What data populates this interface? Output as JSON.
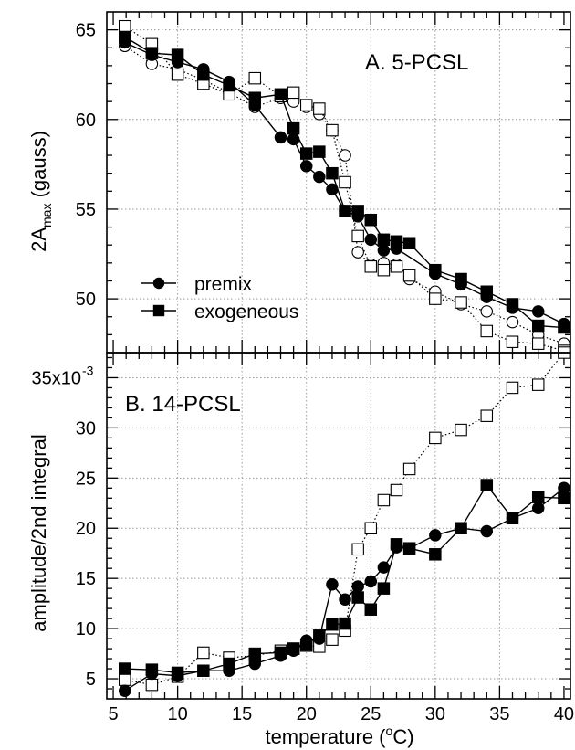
{
  "figure": {
    "xlabel_main": "temperature (",
    "xlabel_unit_sup": "o",
    "xlabel_unit_tail": "C)",
    "colors": {
      "ink": "#000000",
      "grid": "#9a9a9a",
      "open_fill": "#ffffff"
    }
  },
  "chart_data": [
    {
      "id": "A",
      "type": "line",
      "title": "A. 5-PCSL",
      "ylabel_main": "2A",
      "ylabel_sub": "max",
      "ylabel_tail": " (gauss)",
      "xlim": [
        4.5,
        40.5
      ],
      "ylim": [
        47.0,
        66.0
      ],
      "yticks": [
        50,
        55,
        60,
        65
      ],
      "xticks": [
        5,
        10,
        15,
        20,
        25,
        30,
        35,
        40
      ],
      "grid": true,
      "legend": {
        "position": "lower-left",
        "entries": [
          "premix",
          "exogeneous"
        ]
      },
      "series": [
        {
          "name": "premix",
          "marker": "circle",
          "filled": true,
          "line": "solid",
          "x": [
            5.9,
            8.0,
            10.0,
            12.0,
            14.0,
            16.0,
            18.0,
            19.0,
            20.0,
            21.0,
            22.0,
            23.0,
            24.0,
            25.0,
            26.0,
            27.0,
            30.0,
            32.0,
            34.0,
            36.0,
            38.0,
            40.0
          ],
          "y": [
            64.3,
            63.6,
            63.2,
            62.8,
            62.1,
            60.8,
            59.0,
            58.9,
            57.4,
            56.8,
            56.1,
            54.9,
            54.6,
            53.3,
            52.7,
            52.8,
            51.4,
            50.8,
            50.1,
            49.5,
            49.3,
            48.6
          ]
        },
        {
          "name": "exogeneous",
          "marker": "square",
          "filled": true,
          "line": "solid",
          "x": [
            5.9,
            8.0,
            10.0,
            12.0,
            14.0,
            16.0,
            18.0,
            19.0,
            20.0,
            21.0,
            22.0,
            23.0,
            24.0,
            25.0,
            26.0,
            27.0,
            28.0,
            30.0,
            32.0,
            34.0,
            36.0,
            38.0,
            40.0
          ],
          "y": [
            64.6,
            63.7,
            63.6,
            62.5,
            61.9,
            61.2,
            61.4,
            59.5,
            58.1,
            58.2,
            57.0,
            54.9,
            54.9,
            54.4,
            53.3,
            53.2,
            53.1,
            51.6,
            51.1,
            50.4,
            49.7,
            48.5,
            48.4
          ]
        },
        {
          "marker": "circle",
          "filled": false,
          "line": "dotted",
          "x": [
            5.9,
            8.0,
            10.0,
            12.0,
            14.0,
            16.0,
            18.0,
            19.0,
            20.0,
            21.0,
            22.0,
            23.0,
            24.0,
            25.0,
            26.0,
            27.0,
            28.0,
            30.0,
            32.0,
            34.0,
            36.0,
            38.0,
            40.0
          ],
          "y": [
            64.1,
            63.1,
            62.8,
            62.2,
            61.5,
            60.7,
            61.2,
            61.0,
            60.7,
            60.3,
            59.4,
            58.0,
            52.6,
            51.9,
            52.0,
            51.9,
            51.1,
            50.4,
            49.7,
            49.3,
            48.7,
            48.0,
            47.5
          ]
        },
        {
          "marker": "square",
          "filled": false,
          "line": "dotted",
          "x": [
            5.9,
            8.0,
            10.0,
            12.0,
            14.0,
            16.0,
            18.0,
            19.0,
            20.0,
            21.0,
            22.0,
            23.0,
            24.0,
            25.0,
            26.0,
            27.0,
            28.0,
            30.0,
            32.0,
            34.0,
            36.0,
            38.0,
            40.0
          ],
          "y": [
            65.2,
            64.2,
            62.5,
            62.0,
            61.4,
            62.3,
            61.3,
            61.5,
            60.8,
            60.6,
            59.4,
            56.5,
            53.5,
            51.8,
            51.6,
            51.8,
            51.3,
            50.0,
            49.8,
            48.2,
            47.6,
            47.5,
            47.1
          ]
        }
      ]
    },
    {
      "id": "B",
      "type": "line",
      "title": "B. 14-PCSL",
      "ylabel": "amplitude/2nd integral",
      "ylim": [
        3.0,
        37.5
      ],
      "yticks": [
        5,
        10,
        15,
        20,
        25,
        30,
        35
      ],
      "ytick_labels": [
        "5",
        "10",
        "15",
        "20",
        "25",
        "30",
        "35x10"
      ],
      "ytick_top_exponent": "-3",
      "xlim": [
        4.5,
        40.5
      ],
      "xticks": [
        5,
        10,
        15,
        20,
        25,
        30,
        35,
        40
      ],
      "grid": true,
      "series": [
        {
          "marker": "circle",
          "filled": true,
          "line": "solid",
          "x": [
            5.9,
            8.0,
            10.0,
            12.0,
            14.0,
            16.0,
            18.0,
            19.0,
            20.0,
            21.0,
            22.0,
            23.0,
            24.0,
            25.0,
            26.0,
            27.0,
            28.0,
            30.0,
            32.0,
            34.0,
            36.0,
            38.0,
            40.0
          ],
          "y": [
            3.8,
            5.5,
            5.3,
            5.8,
            5.8,
            6.5,
            7.3,
            7.8,
            8.8,
            9.0,
            14.4,
            12.9,
            14.2,
            14.7,
            16.1,
            18.1,
            18.0,
            19.3,
            20.0,
            19.7,
            21.0,
            22.0,
            24.0
          ]
        },
        {
          "marker": "square",
          "filled": true,
          "line": "solid",
          "x": [
            5.9,
            8.0,
            10.0,
            12.0,
            14.0,
            16.0,
            18.0,
            19.0,
            20.0,
            21.0,
            22.0,
            23.0,
            24.0,
            25.0,
            26.0,
            27.0,
            28.0,
            30.0,
            32.0,
            34.0,
            36.0,
            38.0,
            40.0
          ],
          "y": [
            6.0,
            5.9,
            5.6,
            5.8,
            6.5,
            7.5,
            7.6,
            8.0,
            8.4,
            9.3,
            10.4,
            10.5,
            13.1,
            11.9,
            14.0,
            18.4,
            18.0,
            17.4,
            20.0,
            24.3,
            21.0,
            23.1,
            23.0
          ]
        },
        {
          "marker": "square",
          "filled": false,
          "line": "dotted",
          "x": [
            5.9,
            8.0,
            10.0,
            12.0,
            14.0,
            16.0,
            18.0,
            19.0,
            20.0,
            21.0,
            22.0,
            23.0,
            24.0,
            25.0,
            26.0,
            27.0,
            28.0,
            30.0,
            32.0,
            34.0,
            36.0,
            38.0,
            40.0
          ],
          "y": [
            4.9,
            4.4,
            5.2,
            7.6,
            7.1,
            7.3,
            7.8,
            8.0,
            8.3,
            8.2,
            8.9,
            9.8,
            17.9,
            20.0,
            22.8,
            23.8,
            25.9,
            29.0,
            29.8,
            31.2,
            34.0,
            34.3,
            37.5
          ]
        }
      ]
    }
  ]
}
